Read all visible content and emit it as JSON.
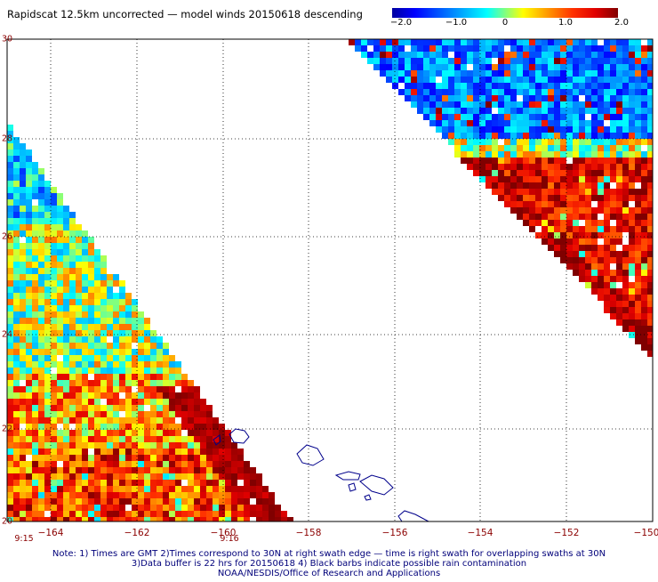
{
  "title": "Rapidscat 12.5km uncorrected — model winds 20150618 descending",
  "colorbar": {
    "ticks": [
      "−2.0",
      "−1.0",
      "0",
      "1.0",
      "2.0"
    ],
    "colors": [
      "#0000a0",
      "#0000ff",
      "#00b0ff",
      "#00ffff",
      "#ffff00",
      "#ff3000",
      "#800000"
    ]
  },
  "axes": {
    "lat_labels": [
      "30",
      "28",
      "26",
      "24",
      "22",
      "20"
    ],
    "lon_labels": [
      "−164",
      "−162",
      "−160",
      "−158",
      "−156",
      "−154",
      "−152",
      "−150"
    ],
    "lat_range": [
      20,
      30
    ],
    "lon_range": [
      -165,
      -150
    ]
  },
  "times": [
    "9:15",
    "9:16"
  ],
  "footer": {
    "line1": "Note: 1) Times are GMT 2)Times correspond to 30N at right swath edge — time is right swath for overlapping swaths at 30N",
    "line2": "3)Data buffer is 22 hrs for 20150618 4) Black barbs indicate possible rain contamination",
    "line3": "NOAA/NESDIS/Office of Research and Applications"
  },
  "colors": {
    "label": "#8b0000",
    "footer": "#00007a",
    "coast": "#00008b"
  }
}
